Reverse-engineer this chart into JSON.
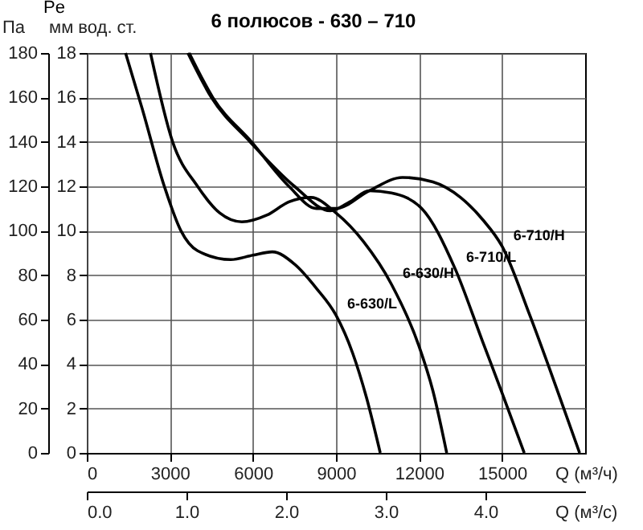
{
  "chart_data": {
    "type": "line",
    "title": "6 полюсов - 630 – 710",
    "xlabel": "Q (м³/ч)",
    "ylabel": "мм вод. ст.",
    "y2label": "Па",
    "x2label": "Q (м³/с)",
    "xlim": [
      0,
      18000
    ],
    "xticks": [
      0,
      3000,
      6000,
      9000,
      12000,
      15000
    ],
    "ylim": [
      0,
      18
    ],
    "yticks": [
      0,
      2,
      4,
      6,
      8,
      10,
      12,
      14,
      16,
      18
    ],
    "y2lim": [
      0,
      180
    ],
    "y2ticks": [
      0,
      20,
      40,
      60,
      80,
      100,
      120,
      140,
      160,
      180
    ],
    "x2lim": [
      0,
      5
    ],
    "x2ticks": [
      {
        "value": 0,
        "label": "0.0"
      },
      {
        "value": 1,
        "label": "1.0"
      },
      {
        "value": 2,
        "label": "2.0"
      },
      {
        "value": 3,
        "label": "3.0"
      },
      {
        "value": 4,
        "label": "4.0"
      }
    ],
    "grid": true,
    "legend": false,
    "marker": "none",
    "line_style": "solid",
    "series": [
      {
        "color": "#000000",
        "x": [
          1400,
          2000,
          2800,
          3400,
          4000,
          5200,
          6000,
          6700,
          7500,
          8300,
          9000,
          9600,
          10100,
          10600
        ],
        "values": [
          18,
          15.5,
          12,
          10,
          9.1,
          8.7,
          8.9,
          9.05,
          8.5,
          7.4,
          6.2,
          4.5,
          2.5,
          0
        ]
      },
      {
        "color": "#000000",
        "x": [
          2300,
          3100,
          4000,
          4800,
          5600,
          6500,
          7300,
          8100,
          9000,
          10000,
          11000,
          12000,
          12500,
          13000
        ],
        "values": [
          18,
          14,
          12,
          10.8,
          10.4,
          10.7,
          11.3,
          11.5,
          10.8,
          9.5,
          7.6,
          4.8,
          2.8,
          0
        ]
      },
      {
        "color": "#000000",
        "x": [
          3650,
          4500,
          5900,
          7500,
          8800,
          9500,
          10200,
          11000,
          12100,
          13300,
          14300,
          15000,
          15800
        ],
        "values": [
          18,
          16,
          14,
          12,
          10.9,
          11.3,
          11.8,
          11.7,
          11.0,
          8.3,
          5.0,
          2.7,
          0
        ]
      },
      {
        "color": "#000000",
        "x": [
          3700,
          4550,
          5950,
          7300,
          8300,
          9000,
          10200,
          11400,
          12500,
          13500,
          14300,
          15000,
          16000,
          17000,
          17800
        ],
        "values": [
          18,
          16,
          14,
          12,
          11.0,
          11.0,
          11.8,
          12.4,
          12.2,
          11.5,
          10.5,
          9.3,
          6.2,
          2.8,
          0
        ]
      }
    ],
    "annotations": [
      "Pe",
      {
        "text": "6-630/L",
        "x": 9000,
        "y": 6.2
      },
      {
        "text": "6-630/H",
        "x": 11000,
        "y": 7.6
      },
      {
        "text": "6-710/L",
        "x": 13300,
        "y": 8.3
      },
      {
        "text": "6-710/H",
        "x": 15000,
        "y": 9.3
      }
    ]
  }
}
